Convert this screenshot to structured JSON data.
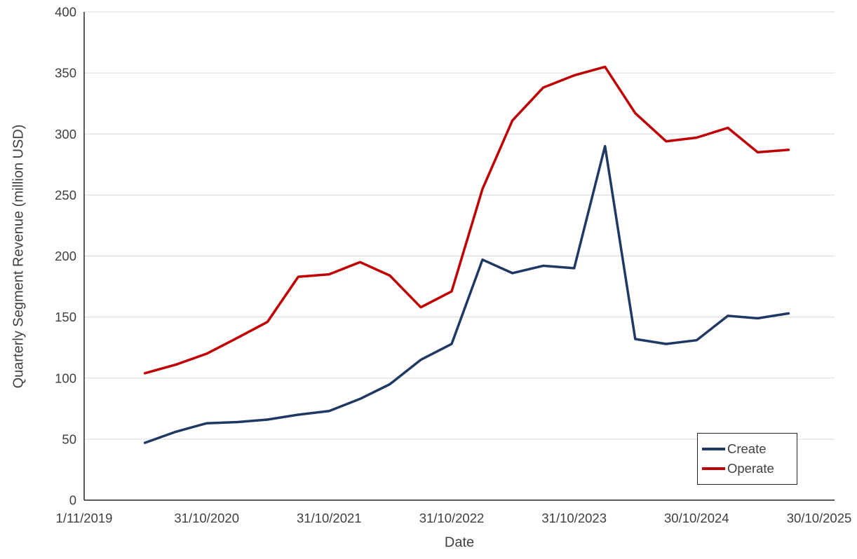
{
  "chart_data": {
    "type": "line",
    "title": "",
    "xlabel": "Date",
    "ylabel": "Quarterly Segment Revenue (million USD)",
    "xlim": [
      "1/11/2019",
      "30/10/2025"
    ],
    "ylim": [
      0,
      400
    ],
    "yticks": [
      0,
      50,
      100,
      150,
      200,
      250,
      300,
      350,
      400
    ],
    "xticks": [
      "1/11/2019",
      "31/10/2020",
      "31/10/2021",
      "31/10/2022",
      "31/10/2023",
      "30/10/2024",
      "30/10/2025"
    ],
    "grid": "horizontal",
    "gridline_color": "#d9d9d9",
    "axis_color": "#262626",
    "legend_position": "bottom-right-inside",
    "x": [
      "30/4/2020",
      "31/7/2020",
      "31/10/2020",
      "31/1/2021",
      "30/4/2021",
      "31/7/2021",
      "31/10/2021",
      "31/1/2022",
      "30/4/2022",
      "31/7/2022",
      "31/10/2022",
      "31/1/2023",
      "30/4/2023",
      "31/7/2023",
      "31/10/2023",
      "31/1/2024",
      "30/4/2024",
      "31/7/2024",
      "30/10/2024",
      "31/1/2025",
      "30/4/2025",
      "31/7/2025"
    ],
    "series": [
      {
        "name": "Create",
        "color": "#1F3864",
        "values": [
          47,
          56,
          63,
          64,
          66,
          70,
          73,
          83,
          95,
          115,
          128,
          197,
          186,
          192,
          190,
          290,
          132,
          128,
          131,
          151,
          149,
          153
        ]
      },
      {
        "name": "Operate",
        "color": "#C00000",
        "values": [
          104,
          111,
          120,
          133,
          146,
          183,
          185,
          195,
          184,
          158,
          171,
          255,
          311,
          338,
          348,
          355,
          317,
          294,
          297,
          305,
          285,
          287
        ]
      }
    ]
  }
}
